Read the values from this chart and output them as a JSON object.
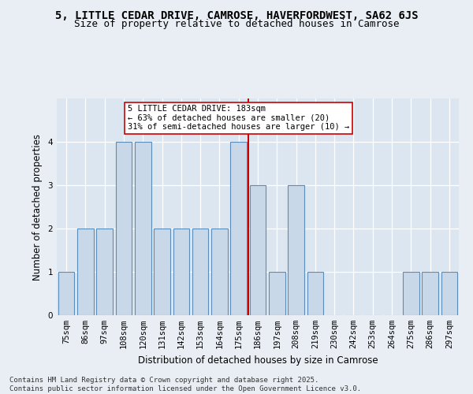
{
  "title": "5, LITTLE CEDAR DRIVE, CAMROSE, HAVERFORDWEST, SA62 6JS",
  "subtitle": "Size of property relative to detached houses in Camrose",
  "xlabel": "Distribution of detached houses by size in Camrose",
  "ylabel": "Number of detached properties",
  "categories": [
    "75sqm",
    "86sqm",
    "97sqm",
    "108sqm",
    "120sqm",
    "131sqm",
    "142sqm",
    "153sqm",
    "164sqm",
    "175sqm",
    "186sqm",
    "197sqm",
    "208sqm",
    "219sqm",
    "230sqm",
    "242sqm",
    "253sqm",
    "264sqm",
    "275sqm",
    "286sqm",
    "297sqm"
  ],
  "values": [
    1,
    2,
    2,
    4,
    4,
    2,
    2,
    2,
    2,
    4,
    3,
    1,
    3,
    1,
    0,
    0,
    0,
    0,
    1,
    1,
    1
  ],
  "bar_color": "#c8d8e8",
  "bar_edge_color": "#5b8db8",
  "highlight_index": 10,
  "highlight_line_color": "#cc0000",
  "annotation_text": "5 LITTLE CEDAR DRIVE: 183sqm\n← 63% of detached houses are smaller (20)\n31% of semi-detached houses are larger (10) →",
  "annotation_box_color": "#ffffff",
  "annotation_box_edge": "#cc0000",
  "ylim": [
    0,
    5
  ],
  "yticks": [
    0,
    1,
    2,
    3,
    4,
    5
  ],
  "background_color": "#e8eef4",
  "plot_bg_color": "#dce6f0",
  "grid_color": "#ffffff",
  "footer": "Contains HM Land Registry data © Crown copyright and database right 2025.\nContains public sector information licensed under the Open Government Licence v3.0.",
  "title_fontsize": 10,
  "subtitle_fontsize": 9,
  "xlabel_fontsize": 8.5,
  "ylabel_fontsize": 8.5,
  "tick_fontsize": 7.5,
  "annotation_fontsize": 7.5,
  "footer_fontsize": 6.5
}
